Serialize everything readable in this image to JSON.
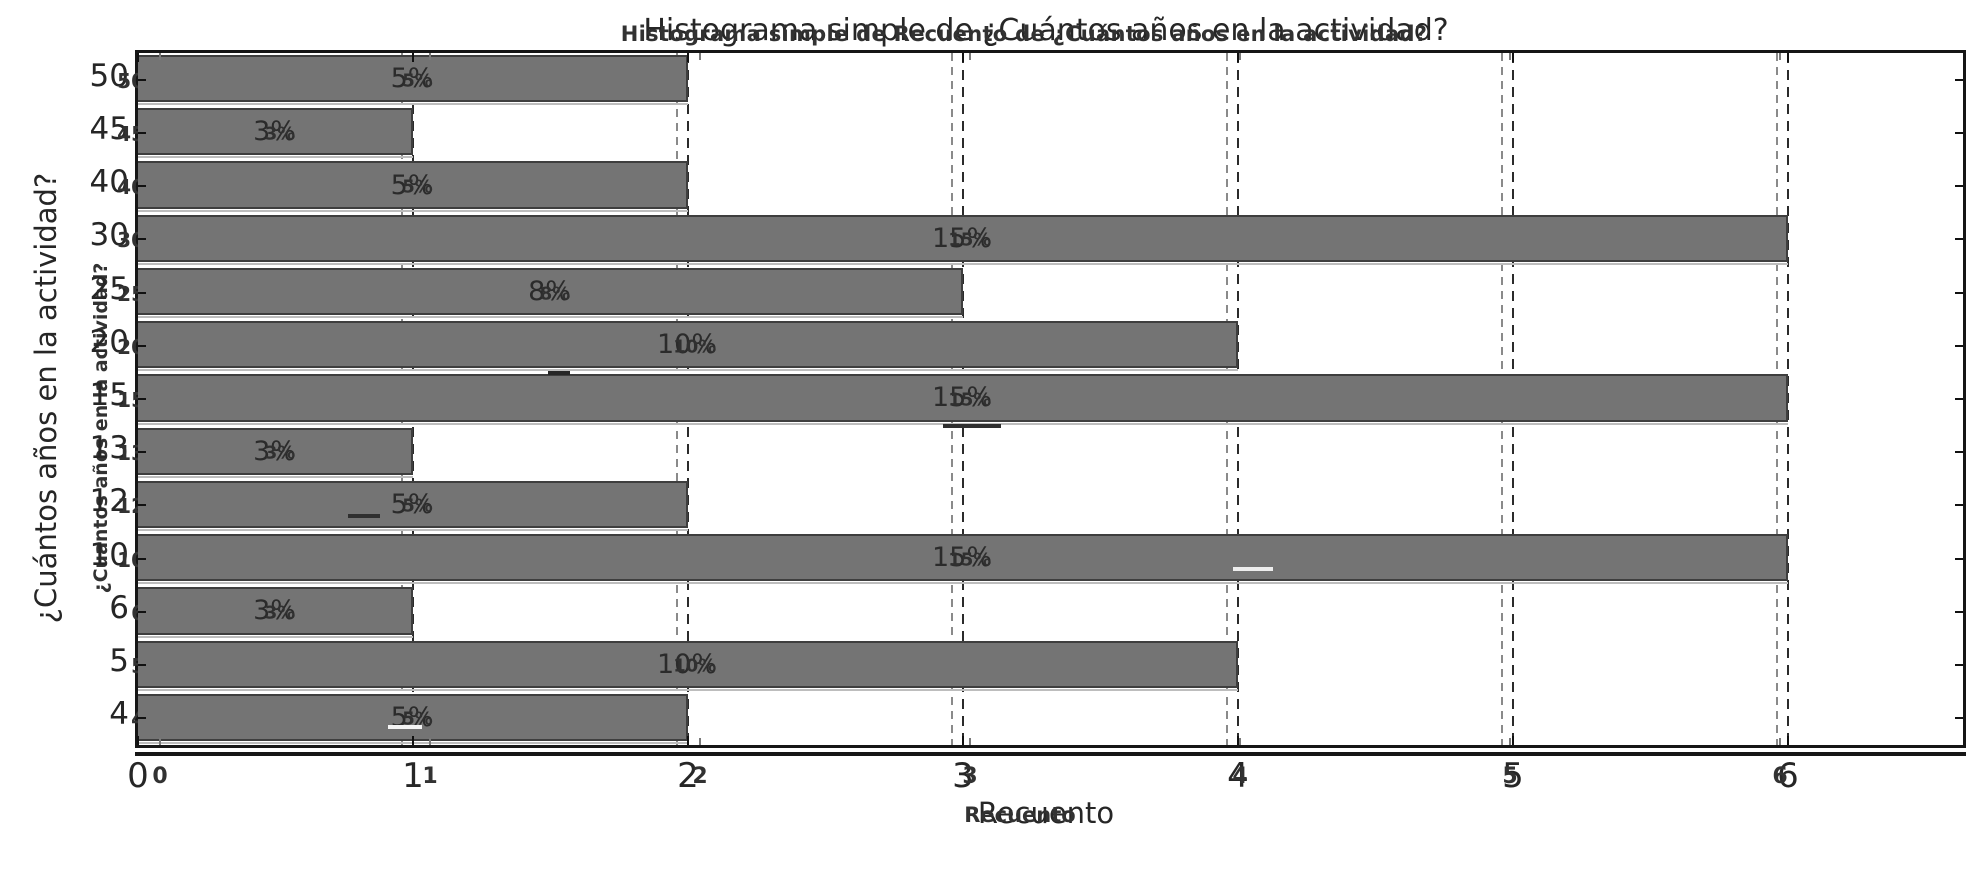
{
  "chart_data": {
    "type": "bar",
    "orientation": "horizontal",
    "title": "Histograma simple de ¿Cuántos años en la actividad?",
    "title_ghost": "Histograma simple de Recuento de ¿Cuántos años en la actividad?",
    "xlabel": "Recuento",
    "xlabel_ghost": "Recuento",
    "ylabel": "¿Cuántos años en la actividad?",
    "ylabel_ghost": "¿Cuantos años en la actividad?",
    "categories": [
      "50",
      "45",
      "40",
      "30",
      "25",
      "20",
      "15",
      "13",
      "12",
      "10",
      "6",
      "5",
      "4"
    ],
    "values": [
      2,
      1,
      2,
      6,
      3,
      4,
      6,
      1,
      2,
      6,
      1,
      4,
      2
    ],
    "bar_labels": [
      "5%",
      "3%",
      "5%",
      "15%",
      "8%",
      "10%",
      "15%",
      "3%",
      "5%",
      "15%",
      "3%",
      "10%",
      "5%"
    ],
    "x_ticks": [
      "0",
      "1",
      "2",
      "3",
      "4",
      "5",
      "6"
    ],
    "xlim": [
      0,
      6.64
    ],
    "grid": {
      "axis": "x",
      "style": "dashed",
      "positions": [
        1,
        2,
        3,
        4,
        5,
        6
      ]
    },
    "legend": null,
    "colors": {
      "bar": "#747474",
      "bar_edge": "#3e3e3e",
      "text": "#262626",
      "grid": "#2b2b2b",
      "grid_ghost": "#8a8a8a",
      "background": "#ffffff"
    }
  }
}
